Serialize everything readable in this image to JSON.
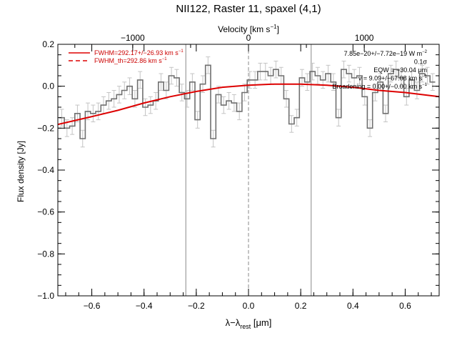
{
  "chart_data": {
    "type": "line",
    "title": "NII122, Raster 11, spaxel (4,1)",
    "xlabel_main": "λ−λ",
    "xlabel_sub": "rest",
    "xlabel_unit": " [μm]",
    "ylabel": "Flux density [Jy]",
    "top_axis_label_main": "Velocity [km s",
    "top_axis_label_sup": "−1",
    "top_axis_label_end": "]",
    "xlim": [
      -0.73,
      0.73
    ],
    "ylim": [
      -1.0,
      0.2
    ],
    "x_ticks": [
      "−0.6",
      "−0.4",
      "−0.2",
      "0.0",
      "0.2",
      "0.4",
      "0.6"
    ],
    "x_tick_values": [
      -0.6,
      -0.4,
      -0.2,
      0.0,
      0.2,
      0.4,
      0.6
    ],
    "y_ticks": [
      "−1.0",
      "−0.8",
      "−0.6",
      "−0.4",
      "−0.2",
      "0.0",
      "0.2"
    ],
    "y_tick_values": [
      -1.0,
      -0.8,
      -0.6,
      -0.4,
      -0.2,
      0.0,
      0.2
    ],
    "top_ticks": [
      "−1000",
      "0",
      "1000"
    ],
    "top_tick_values": [
      -1000,
      0,
      1000
    ],
    "vertical_lines": [
      -0.24,
      0.0,
      0.24
    ],
    "legend": [
      {
        "label": "FWHM=292.17+/−26.93 km s",
        "sup": "−1",
        "style": "solid",
        "color": "#dd0000"
      },
      {
        "label": "FWHM_th=292.86 km s",
        "sup": "−1",
        "style": "dashed",
        "color": "#dd0000"
      }
    ],
    "stats": [
      {
        "text": "7.85e−20+/−7.72e−19 W m",
        "sup": "−2"
      },
      {
        "text": "0.1σ",
        "sup": ""
      },
      {
        "text": "EQW = −30.04 μm",
        "sup": ""
      },
      {
        "text": "v = 9.09+/−67.08 km s",
        "sup": "−1"
      },
      {
        "text": "Broadening = 0.00+/−0.00 km s",
        "sup": "−1"
      }
    ],
    "series": [
      {
        "name": "spectrum",
        "style": "histogram",
        "color": "#808080",
        "x": [
          -0.715,
          -0.695,
          -0.675,
          -0.655,
          -0.635,
          -0.615,
          -0.595,
          -0.575,
          -0.555,
          -0.535,
          -0.515,
          -0.495,
          -0.475,
          -0.455,
          -0.435,
          -0.415,
          -0.395,
          -0.375,
          -0.355,
          -0.335,
          -0.315,
          -0.295,
          -0.275,
          -0.255,
          -0.235,
          -0.215,
          -0.195,
          -0.175,
          -0.155,
          -0.135,
          -0.115,
          -0.095,
          -0.075,
          -0.055,
          -0.035,
          -0.015,
          0.005,
          0.025,
          0.045,
          0.065,
          0.085,
          0.105,
          0.125,
          0.145,
          0.165,
          0.185,
          0.205,
          0.225,
          0.245,
          0.265,
          0.285,
          0.305,
          0.325,
          0.345,
          0.365,
          0.385,
          0.405,
          0.425,
          0.445,
          0.465,
          0.485,
          0.505,
          0.525,
          0.545,
          0.565,
          0.585,
          0.605,
          0.625,
          0.645,
          0.665,
          0.685,
          0.705
        ],
        "y": [
          -0.15,
          -0.2,
          -0.19,
          -0.13,
          -0.25,
          -0.12,
          -0.13,
          -0.12,
          -0.09,
          -0.07,
          -0.06,
          -0.04,
          -0.02,
          0.0,
          -0.06,
          0.03,
          -0.1,
          -0.09,
          -0.07,
          0.02,
          -0.02,
          0.05,
          0.04,
          -0.03,
          -0.06,
          0.02,
          -0.16,
          0.01,
          0.1,
          -0.25,
          -0.04,
          -0.09,
          -0.07,
          -0.08,
          -0.12,
          -0.03,
          0.03,
          0.03,
          0.07,
          0.07,
          0.05,
          0.08,
          0.05,
          -0.06,
          -0.18,
          -0.15,
          0.04,
          0.02,
          0.07,
          0.05,
          0.03,
          0.06,
          0.02,
          -0.15,
          0.08,
          0.06,
          0.04,
          0.05,
          -0.05,
          -0.2,
          -0.03,
          0.02,
          -0.13,
          0.06,
          0.08,
          0.04,
          -0.05,
          0.03,
          -0.02,
          0.06,
          0.05,
          0.02
        ],
        "errors": [
          0.04,
          0.04,
          0.04,
          0.04,
          0.04,
          0.04,
          0.04,
          0.04,
          0.04,
          0.04,
          0.04,
          0.04,
          0.04,
          0.04,
          0.04,
          0.04,
          0.04,
          0.04,
          0.04,
          0.04,
          0.04,
          0.04,
          0.04,
          0.04,
          0.04,
          0.04,
          0.04,
          0.04,
          0.04,
          0.04,
          0.04,
          0.04,
          0.04,
          0.04,
          0.04,
          0.04,
          0.04,
          0.04,
          0.04,
          0.04,
          0.04,
          0.04,
          0.04,
          0.04,
          0.04,
          0.04,
          0.04,
          0.04,
          0.04,
          0.04,
          0.04,
          0.04,
          0.04,
          0.04,
          0.04,
          0.04,
          0.04,
          0.04,
          0.04,
          0.04,
          0.04,
          0.04,
          0.04,
          0.04,
          0.04,
          0.04,
          0.04,
          0.04,
          0.04,
          0.04,
          0.04,
          0.04
        ]
      },
      {
        "name": "fit",
        "style": "line",
        "color": "#dd0000",
        "x": [
          -0.73,
          -0.6,
          -0.5,
          -0.4,
          -0.3,
          -0.2,
          -0.1,
          0.0,
          0.1,
          0.2,
          0.3,
          0.4,
          0.5,
          0.6,
          0.73
        ],
        "y": [
          -0.182,
          -0.145,
          -0.115,
          -0.08,
          -0.05,
          -0.025,
          -0.005,
          0.005,
          0.01,
          0.01,
          0.005,
          -0.005,
          -0.02,
          -0.03,
          -0.05
        ]
      }
    ]
  }
}
